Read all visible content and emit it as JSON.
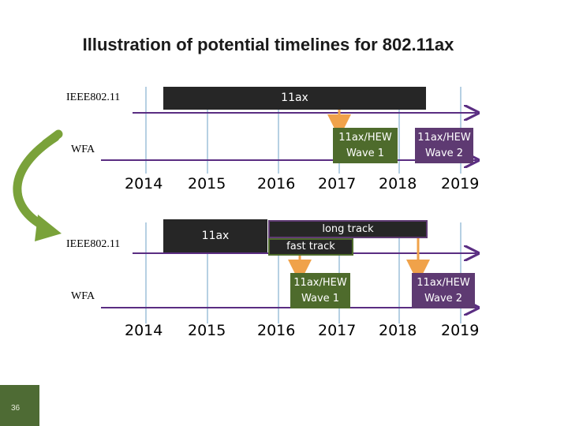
{
  "title": "Illustration of potential timelines for 802.11ax",
  "page_number": "36",
  "colors": {
    "dark_bar": "#262626",
    "wave_green": "#4e6b2c",
    "wave_purple": "#5e3a72",
    "arrow_orange": "#f0a24a",
    "grid_blue": "#8fb6d4",
    "axis_purple": "#5a2d82",
    "curve_green": "#7aa23a"
  },
  "top": {
    "ieee_label": "IEEE802.11",
    "wfa_label": "WFA",
    "bar_label": "11ax",
    "wave1": [
      "11ax/HEW",
      "Wave 1"
    ],
    "wave2": [
      "11ax/HEW",
      "Wave 2"
    ],
    "years": [
      "2014",
      "2015",
      "2016",
      "2017",
      "2018",
      "2019"
    ]
  },
  "bottom": {
    "ieee_label": "IEEE802.11",
    "wfa_label": "WFA",
    "bar_label": "11ax",
    "long_track_label": "long track",
    "fast_track_label": "fast track",
    "wave1": [
      "11ax/HEW",
      "Wave 1"
    ],
    "wave2": [
      "11ax/HEW",
      "Wave 2"
    ],
    "years": [
      "2014",
      "2015",
      "2016",
      "2017",
      "2018",
      "2019"
    ]
  }
}
